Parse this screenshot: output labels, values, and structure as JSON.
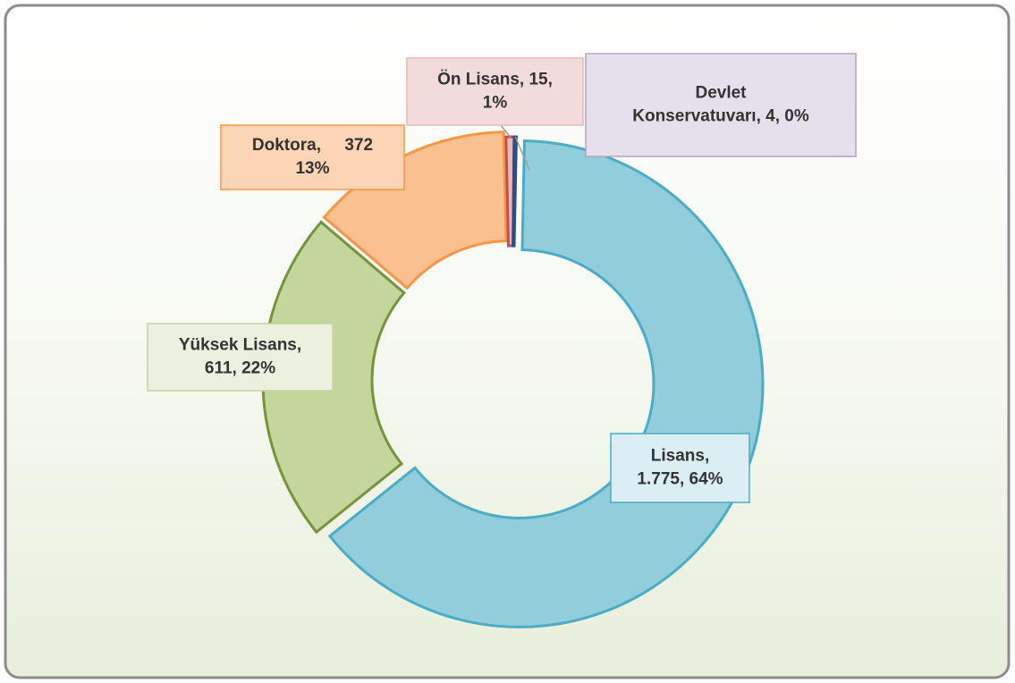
{
  "chart_data": {
    "type": "donut",
    "categories": [
      "Lisans",
      "Yüksek Lisans",
      "Doktora",
      "Ön Lisans",
      "Devlet Konservatuvarı"
    ],
    "values": [
      1775,
      611,
      372,
      15,
      4
    ],
    "data_labels": [
      [
        "Lisans,",
        "1.775, 64%"
      ],
      [
        "Yüksek Lisans,",
        "611, 22%"
      ],
      [
        "Doktora,     372",
        "13%"
      ],
      [
        "Ön Lisans, 15,",
        "1%"
      ],
      [
        "Devlet",
        "Konservatuvarı, 4, 0%"
      ]
    ],
    "colors": [
      "#92cddc",
      "#c3d69b",
      "#fac090",
      "#e6b9b8",
      "#3f6fb0"
    ],
    "edge_colors": [
      "#4bacc6",
      "#77933c",
      "#f79646",
      "#c0504d",
      "#2c4d8a"
    ]
  }
}
